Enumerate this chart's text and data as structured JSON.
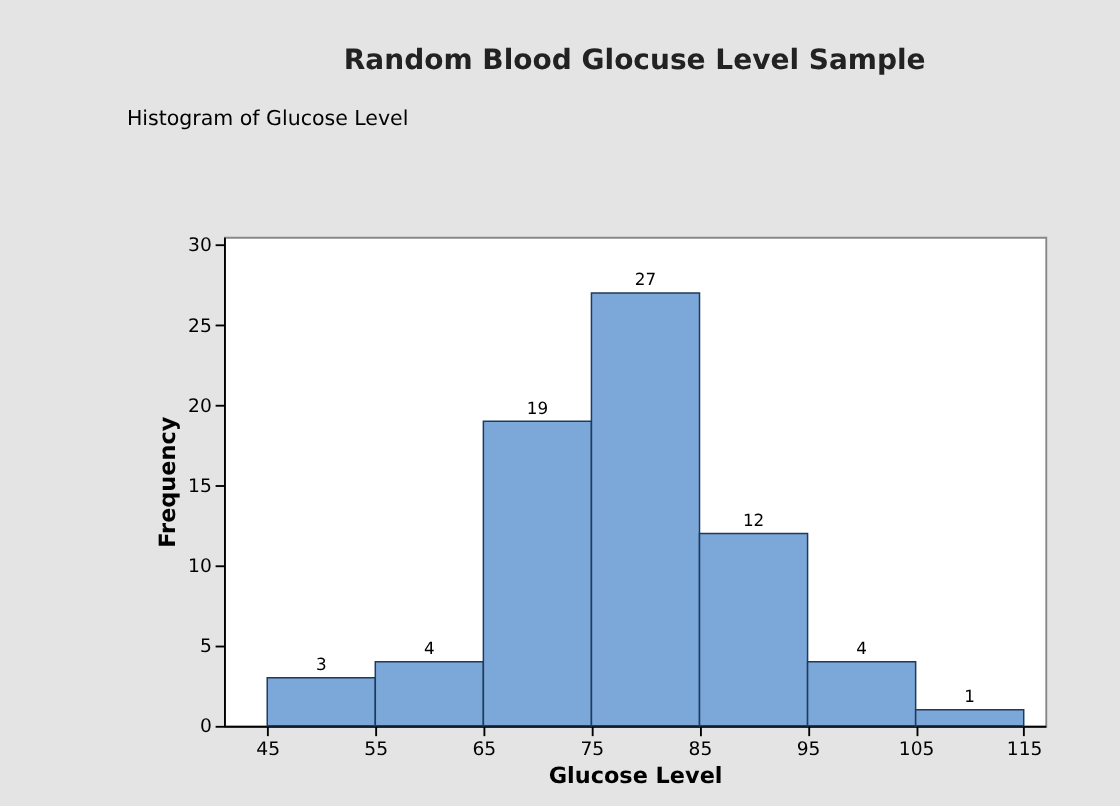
{
  "chart_data": {
    "type": "histogram",
    "title": "Random Blood Glocuse Level Sample",
    "xlabel": "Glucose Level",
    "ylabel": "Frequency",
    "annotations": [
      "Histogram of Glucose Level"
    ],
    "bins": [
      45,
      55,
      65,
      75,
      85,
      95,
      105,
      115
    ],
    "values": [
      3,
      4,
      19,
      27,
      12,
      4,
      1
    ],
    "color": "#7ba7d9",
    "xlim": [
      41,
      117
    ],
    "xticks": [
      45,
      55,
      65,
      75,
      85,
      95,
      105,
      115
    ],
    "ylim": [
      0,
      30.5
    ],
    "yticks": [
      0,
      5,
      10,
      15,
      20,
      25,
      30
    ],
    "grid": false,
    "data_labels": true
  }
}
